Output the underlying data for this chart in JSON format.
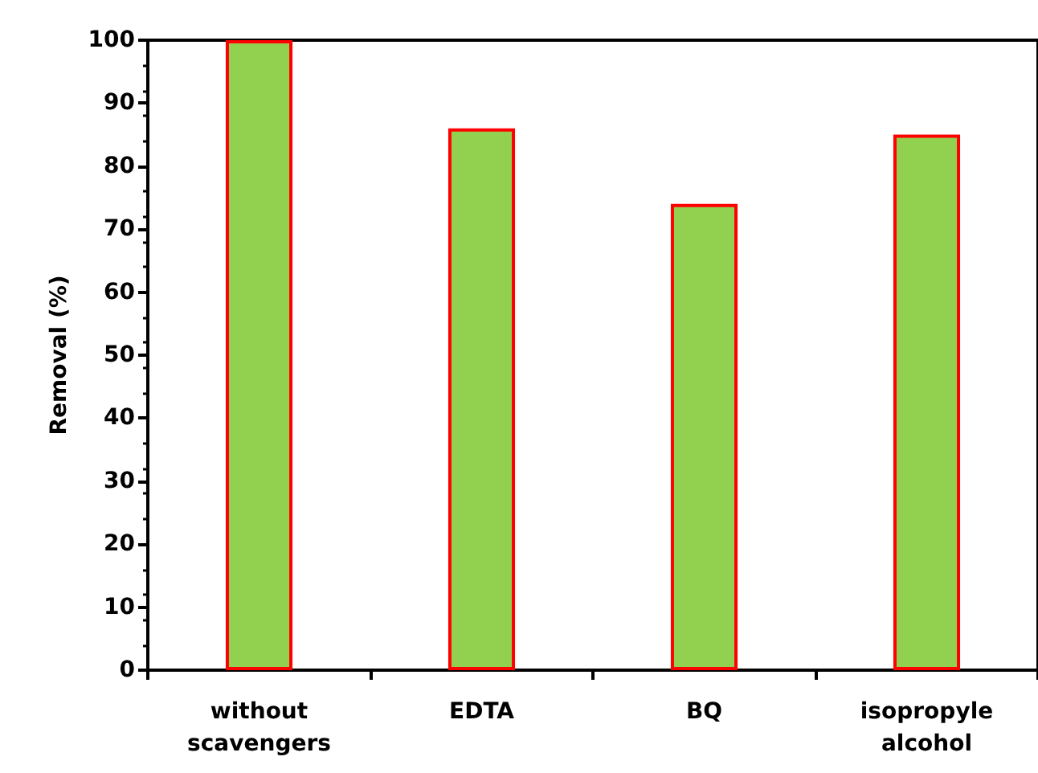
{
  "chart_data": {
    "type": "bar",
    "ylabel": "Removal (%)",
    "categories": [
      "without\nscavengers",
      "EDTA",
      "BQ",
      "isopropyle\nalcohol"
    ],
    "values": [
      100,
      86,
      74,
      85
    ],
    "color": "#92d050",
    "ylim": [
      0,
      100
    ],
    "yticks": [
      0,
      10,
      20,
      30,
      40,
      50,
      60,
      70,
      80,
      90,
      100
    ],
    "grid": false
  }
}
